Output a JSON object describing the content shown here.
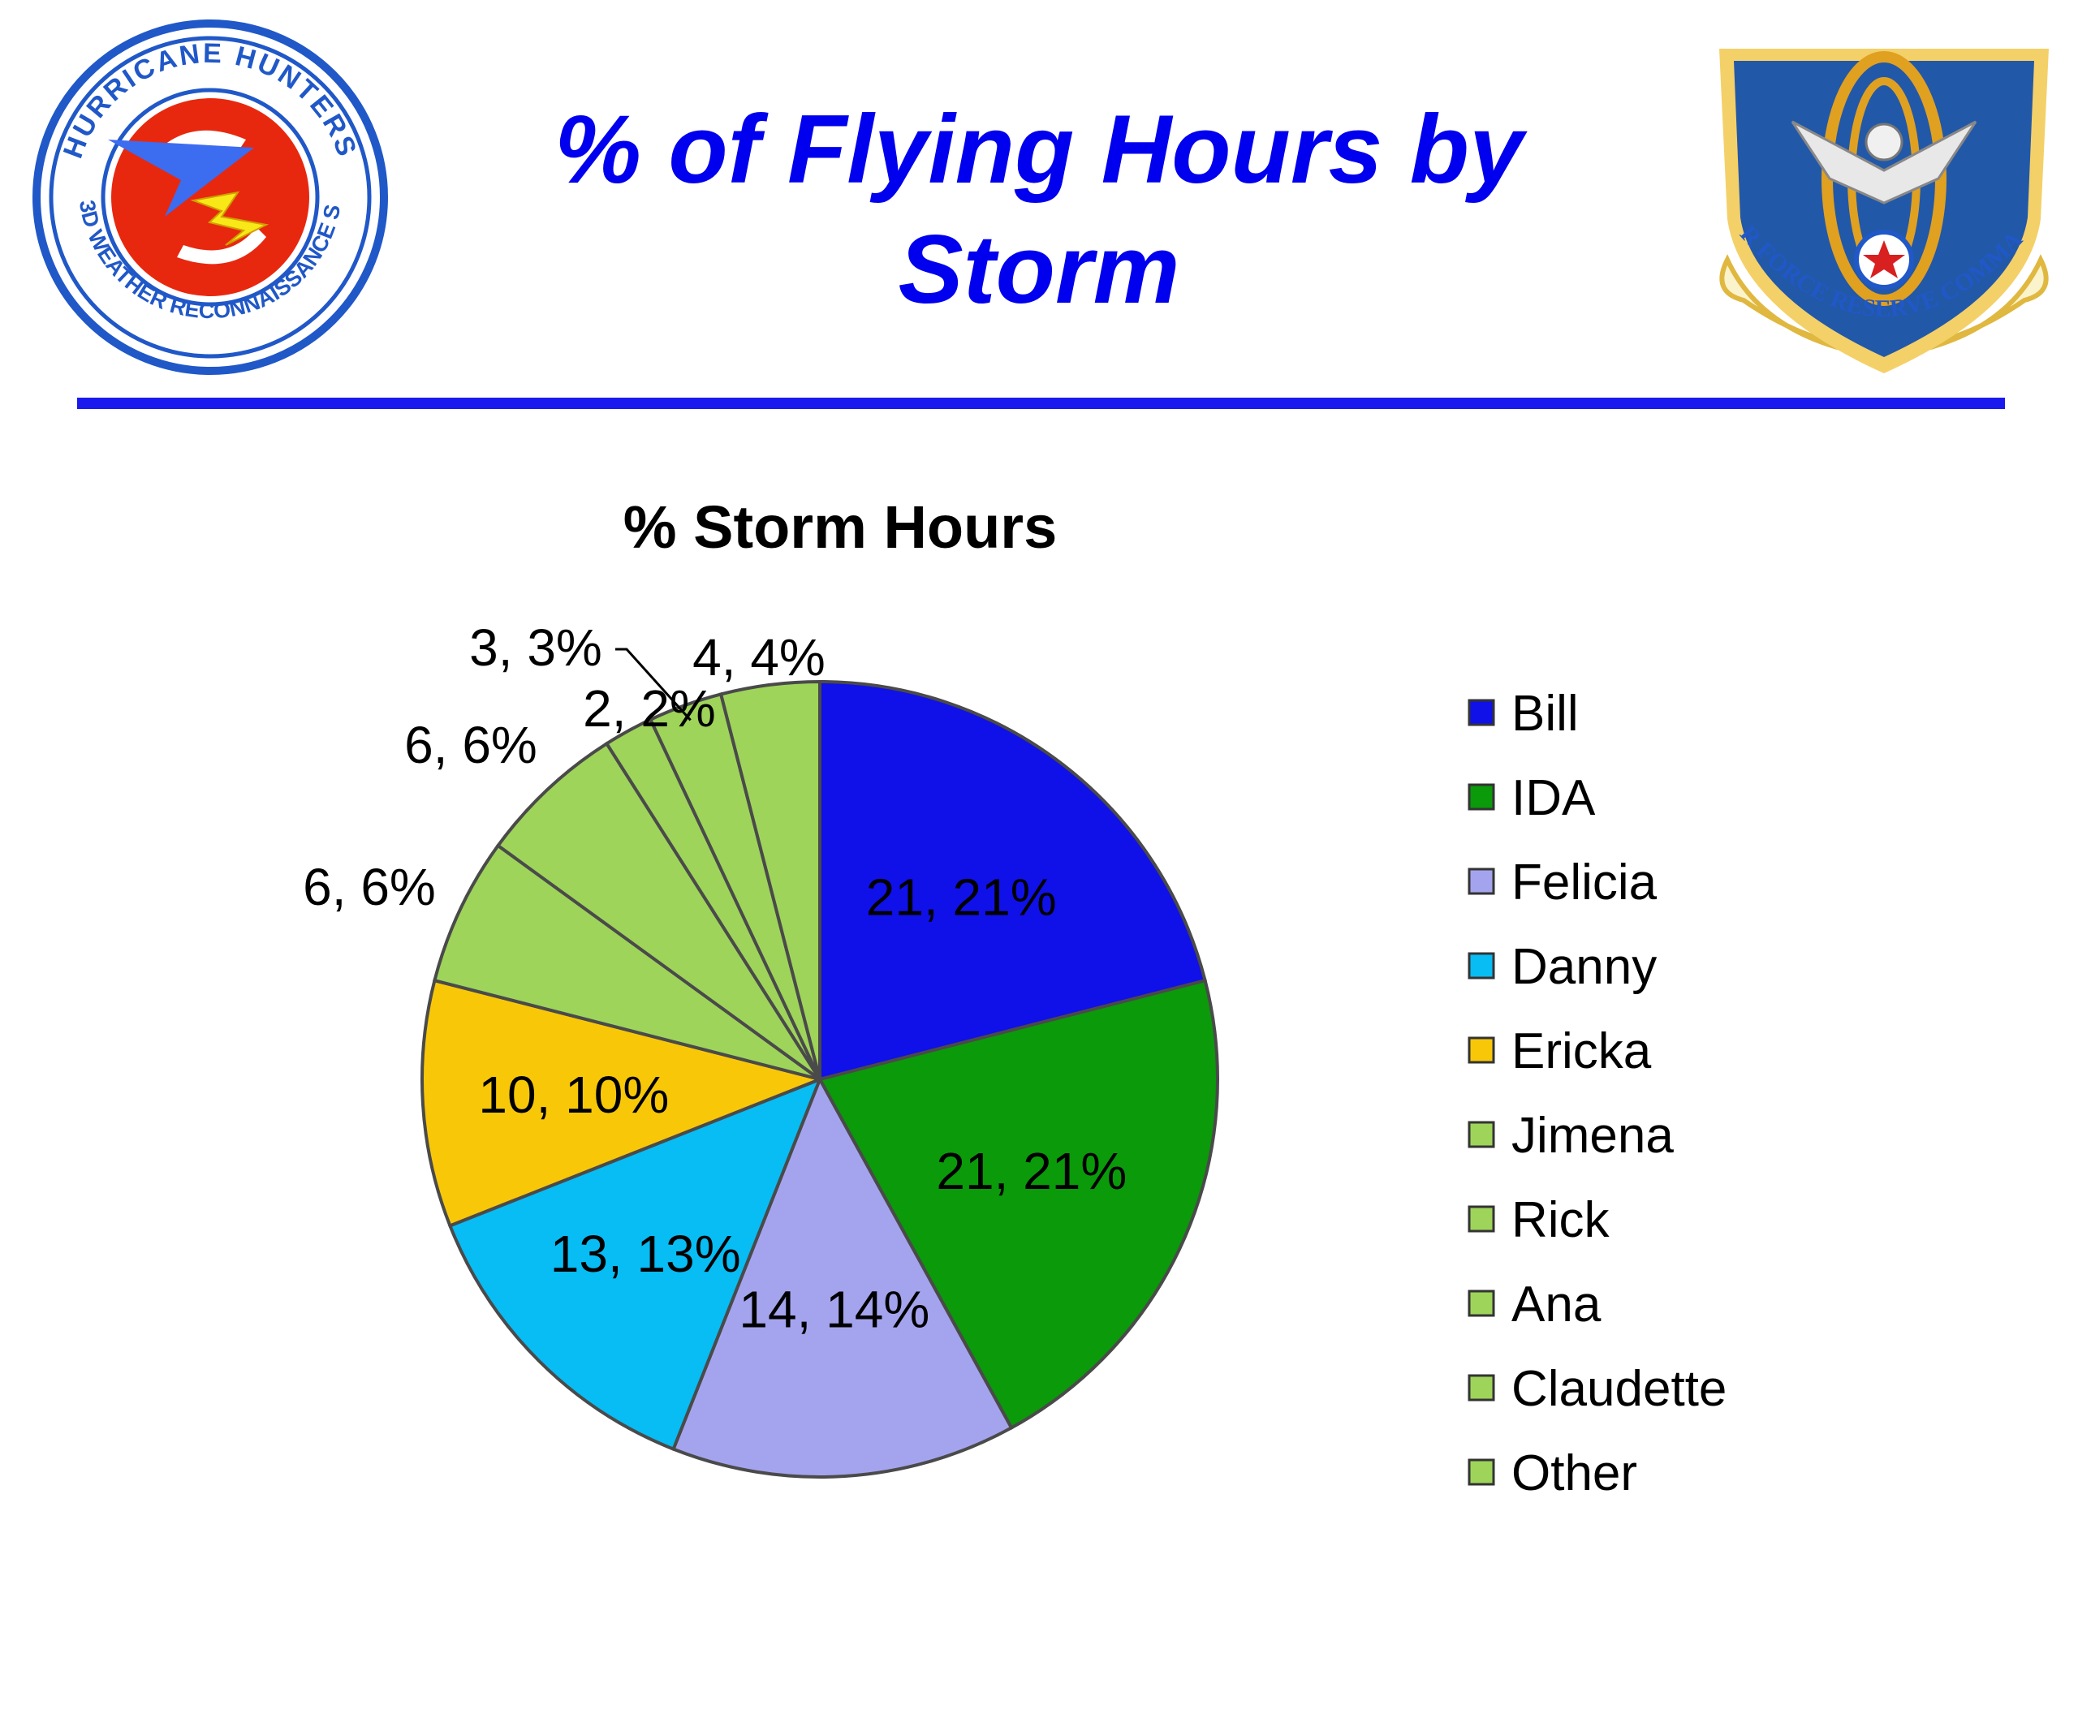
{
  "slide": {
    "title": "% of Flying Hours by Storm",
    "left_logo": {
      "icon": "hurricane-hunters-patch",
      "top_text": "HURRICANE HUNTERS",
      "bottom_text": "53D WEATHER RECONNAISSANCE SQ"
    },
    "right_logo": {
      "icon": "air-force-reserve-command-shield",
      "text": "AIR FORCE RESERVE COMMAND"
    },
    "rule_color": "#1a1aee"
  },
  "chart_data": {
    "type": "pie",
    "title": "% Storm Hours",
    "slices": [
      {
        "name": "Bill",
        "value": 21,
        "label": "21, 21%",
        "color": "#1010e8"
      },
      {
        "name": "IDA",
        "value": 21,
        "label": "21, 21%",
        "color": "#0a9a0a"
      },
      {
        "name": "Felicia",
        "value": 14,
        "label": "14, 14%",
        "color": "#a4a4ee"
      },
      {
        "name": "Danny",
        "value": 13,
        "label": "13, 13%",
        "color": "#08bcf4"
      },
      {
        "name": "Ericka",
        "value": 10,
        "label": "10, 10%",
        "color": "#f8c808"
      },
      {
        "name": "Jimena",
        "value": 6,
        "label": "6, 6%",
        "color": "#9ed45a"
      },
      {
        "name": "Rick",
        "value": 6,
        "label": "6, 6%",
        "color": "#9ed45a"
      },
      {
        "name": "Ana",
        "value": 2,
        "label": "2, 2%",
        "color": "#9ed45a"
      },
      {
        "name": "Claudette",
        "value": 3,
        "label": "3, 3%",
        "color": "#9ed45a"
      },
      {
        "name": "Other",
        "value": 4,
        "label": "4, 4%",
        "color": "#9ed45a"
      }
    ],
    "legend": [
      "Bill",
      "IDA",
      "Felicia",
      "Danny",
      "Ericka",
      "Jimena",
      "Rick",
      "Ana",
      "Claudette",
      "Other"
    ],
    "legend_position": "right",
    "start_angle": "12 o'clock",
    "direction": "clockwise"
  }
}
